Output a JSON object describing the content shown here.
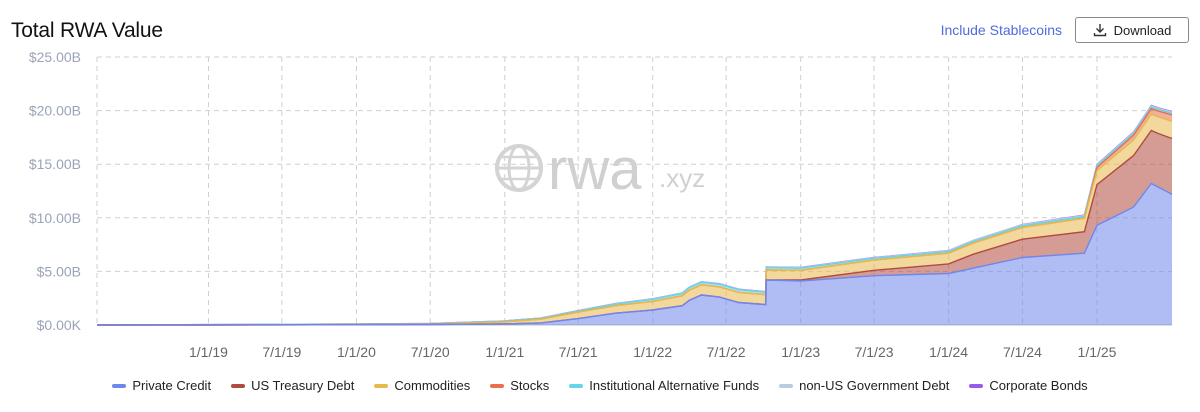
{
  "header": {
    "title": "Total RWA Value",
    "include_stablecoins_label": "Include Stablecoins",
    "download_label": "Download"
  },
  "watermark": {
    "brand": "rwa",
    "suffix": ".xyz",
    "icon": "globe-icon"
  },
  "chart_data": {
    "type": "area",
    "stacked": true,
    "title": "Total RWA Value",
    "y_tick_labels": [
      "$0.00K",
      "$5.00B",
      "$10.00B",
      "$15.00B",
      "$20.00B",
      "$25.00B"
    ],
    "ylim": [
      0,
      25
    ],
    "y_unit": "billions USD",
    "x_tick_labels": [
      "1/1/19",
      "7/1/19",
      "1/1/20",
      "7/1/20",
      "1/1/21",
      "7/1/21",
      "1/1/22",
      "7/1/22",
      "1/1/23",
      "7/1/23",
      "1/1/24",
      "7/1/24",
      "1/1/25"
    ],
    "xlim": [
      "2018-04-01",
      "2025-07-05"
    ],
    "grid": true,
    "legend_position": "bottom",
    "series": [
      {
        "name": "Private Credit",
        "color": "#6f86ec",
        "points": [
          [
            "2018-04-01",
            0.0
          ],
          [
            "2019-01-01",
            0.0
          ],
          [
            "2020-01-01",
            0.03
          ],
          [
            "2020-07-01",
            0.05
          ],
          [
            "2021-01-01",
            0.1
          ],
          [
            "2021-04-01",
            0.2
          ],
          [
            "2021-07-01",
            0.6
          ],
          [
            "2021-10-01",
            1.1
          ],
          [
            "2022-01-01",
            1.4
          ],
          [
            "2022-03-15",
            1.8
          ],
          [
            "2022-04-01",
            2.3
          ],
          [
            "2022-05-01",
            2.8
          ],
          [
            "2022-06-15",
            2.6
          ],
          [
            "2022-08-01",
            2.1
          ],
          [
            "2022-10-07",
            1.9
          ],
          [
            "2022-10-08",
            4.2
          ],
          [
            "2023-01-01",
            4.1
          ],
          [
            "2023-07-01",
            4.6
          ],
          [
            "2024-01-01",
            4.8
          ],
          [
            "2024-07-01",
            6.3
          ],
          [
            "2024-12-01",
            6.7
          ],
          [
            "2025-01-01",
            9.3
          ],
          [
            "2025-04-01",
            11.0
          ],
          [
            "2025-05-15",
            13.2
          ],
          [
            "2025-07-05",
            12.2
          ]
        ]
      },
      {
        "name": "US Treasury Debt",
        "color": "#b24a40",
        "points": [
          [
            "2018-04-01",
            0.0
          ],
          [
            "2022-10-01",
            0.0
          ],
          [
            "2023-01-01",
            0.1
          ],
          [
            "2023-07-01",
            0.5
          ],
          [
            "2024-01-01",
            0.9
          ],
          [
            "2024-03-01",
            1.3
          ],
          [
            "2024-07-01",
            1.7
          ],
          [
            "2024-12-01",
            2.0
          ],
          [
            "2025-01-01",
            3.8
          ],
          [
            "2025-04-01",
            4.8
          ],
          [
            "2025-06-01",
            5.0
          ],
          [
            "2025-07-05",
            5.2
          ]
        ]
      },
      {
        "name": "Commodities",
        "color": "#e8b84a",
        "points": [
          [
            "2018-04-01",
            0.0
          ],
          [
            "2020-07-01",
            0.02
          ],
          [
            "2021-01-01",
            0.2
          ],
          [
            "2021-04-01",
            0.35
          ],
          [
            "2021-07-01",
            0.6
          ],
          [
            "2022-01-01",
            0.8
          ],
          [
            "2022-04-01",
            0.95
          ],
          [
            "2022-07-01",
            0.95
          ],
          [
            "2023-01-01",
            0.9
          ],
          [
            "2023-07-01",
            0.95
          ],
          [
            "2024-01-01",
            1.0
          ],
          [
            "2024-07-01",
            1.1
          ],
          [
            "2025-01-01",
            1.3
          ],
          [
            "2025-07-05",
            1.6
          ]
        ]
      },
      {
        "name": "Stocks",
        "color": "#e8704a",
        "points": [
          [
            "2018-04-01",
            0.0
          ],
          [
            "2024-12-01",
            0.0
          ],
          [
            "2025-01-01",
            0.3
          ],
          [
            "2025-07-05",
            0.6
          ]
        ]
      },
      {
        "name": "Institutional Alternative Funds",
        "color": "#67d4e8",
        "points": [
          [
            "2018-04-01",
            0.0
          ],
          [
            "2019-06-01",
            0.03
          ],
          [
            "2021-01-01",
            0.05
          ],
          [
            "2021-07-01",
            0.1
          ],
          [
            "2022-01-01",
            0.2
          ],
          [
            "2022-07-01",
            0.25
          ],
          [
            "2023-01-01",
            0.2
          ],
          [
            "2024-01-01",
            0.15
          ],
          [
            "2025-07-05",
            0.15
          ]
        ]
      },
      {
        "name": "non-US Government Debt",
        "color": "#b8cde0",
        "points": [
          [
            "2018-04-01",
            0.0
          ],
          [
            "2023-07-01",
            0.05
          ],
          [
            "2024-07-01",
            0.1
          ],
          [
            "2025-07-05",
            0.1
          ]
        ]
      },
      {
        "name": "Corporate Bonds",
        "color": "#9a5ae8",
        "points": [
          [
            "2018-04-01",
            0.0
          ],
          [
            "2024-07-01",
            0.02
          ],
          [
            "2025-07-05",
            0.05
          ]
        ]
      }
    ]
  }
}
